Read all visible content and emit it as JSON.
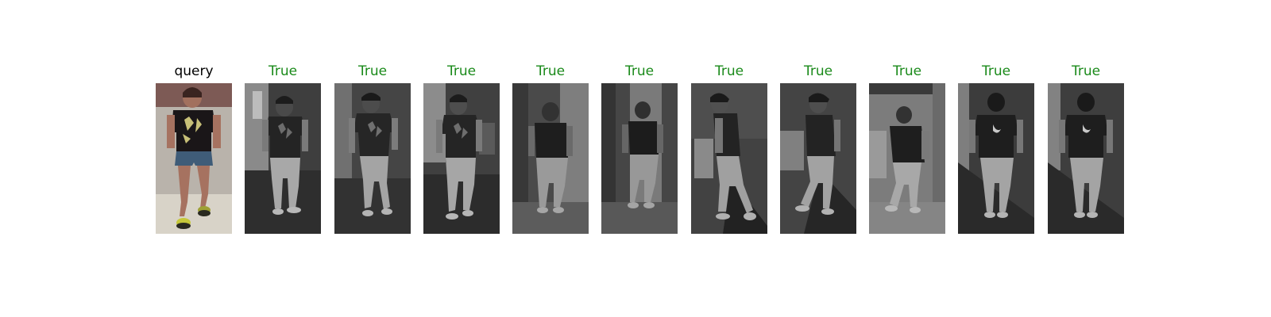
{
  "figure": {
    "query": {
      "label": "query",
      "label_color": "#000000",
      "image_description": "color photo of person in black t-shirt and denim shorts"
    },
    "results": [
      {
        "label": "True",
        "label_color": "#1a8a1a",
        "view": "front"
      },
      {
        "label": "True",
        "label_color": "#1a8a1a",
        "view": "front"
      },
      {
        "label": "True",
        "label_color": "#1a8a1a",
        "view": "front"
      },
      {
        "label": "True",
        "label_color": "#1a8a1a",
        "view": "front-blurred"
      },
      {
        "label": "True",
        "label_color": "#1a8a1a",
        "view": "front-blurred"
      },
      {
        "label": "True",
        "label_color": "#1a8a1a",
        "view": "side"
      },
      {
        "label": "True",
        "label_color": "#1a8a1a",
        "view": "side"
      },
      {
        "label": "True",
        "label_color": "#1a8a1a",
        "view": "front-blurred"
      },
      {
        "label": "True",
        "label_color": "#1a8a1a",
        "view": "back"
      },
      {
        "label": "True",
        "label_color": "#1a8a1a",
        "view": "back"
      }
    ]
  }
}
